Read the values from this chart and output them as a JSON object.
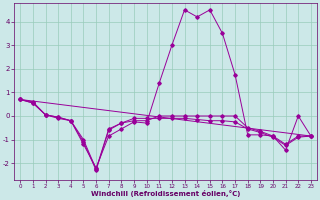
{
  "xlabel": "Windchill (Refroidissement éolien,°C)",
  "ylabel": "",
  "bg_color": "#cce8e8",
  "line_color": "#990099",
  "xlim": [
    -0.5,
    23.5
  ],
  "ylim": [
    -2.7,
    4.8
  ],
  "xticks": [
    0,
    1,
    2,
    3,
    4,
    5,
    6,
    7,
    8,
    9,
    10,
    11,
    12,
    13,
    14,
    15,
    16,
    17,
    18,
    19,
    20,
    21,
    22,
    23
  ],
  "yticks": [
    -2,
    -1,
    0,
    1,
    2,
    3,
    4
  ],
  "grid_color": "#99ccbb",
  "line1_x": [
    0,
    1,
    2,
    3,
    4,
    5,
    6,
    7,
    8,
    9,
    10,
    11,
    12,
    13,
    14,
    15,
    16,
    17,
    18,
    19,
    20,
    21,
    22,
    23
  ],
  "line1_y": [
    0.7,
    0.6,
    0.05,
    -0.1,
    -0.2,
    -1.2,
    -2.2,
    -0.85,
    -0.55,
    -0.25,
    -0.3,
    1.4,
    3.0,
    4.5,
    4.2,
    4.5,
    3.5,
    1.75,
    -0.8,
    -0.8,
    -0.85,
    -1.45,
    0.0,
    -0.85
  ],
  "line2_x": [
    0,
    1,
    2,
    3,
    4,
    5,
    6,
    7,
    8,
    9,
    10,
    11,
    12,
    13,
    14,
    15,
    16,
    17,
    18,
    19,
    20,
    21,
    22,
    23
  ],
  "line2_y": [
    0.7,
    0.55,
    0.05,
    -0.05,
    -0.2,
    -1.1,
    -2.3,
    -0.6,
    -0.3,
    -0.2,
    -0.2,
    0.0,
    0.0,
    0.0,
    0.0,
    0.0,
    0.0,
    0.0,
    -0.5,
    -0.65,
    -0.85,
    -1.2,
    -0.85,
    -0.85
  ],
  "line3_x": [
    0,
    1,
    2,
    3,
    4,
    5,
    6,
    7,
    8,
    9,
    10,
    11,
    12,
    13,
    14,
    15,
    16,
    17,
    18,
    19,
    20,
    21,
    22,
    23
  ],
  "line3_y": [
    0.7,
    0.55,
    0.05,
    -0.05,
    -0.2,
    -1.0,
    -2.25,
    -0.55,
    -0.3,
    -0.1,
    -0.1,
    -0.1,
    -0.1,
    -0.1,
    -0.15,
    -0.2,
    -0.2,
    -0.25,
    -0.55,
    -0.7,
    -0.9,
    -1.25,
    -0.9,
    -0.85
  ],
  "line4_x": [
    0,
    23
  ],
  "line4_y": [
    0.7,
    -0.85
  ]
}
